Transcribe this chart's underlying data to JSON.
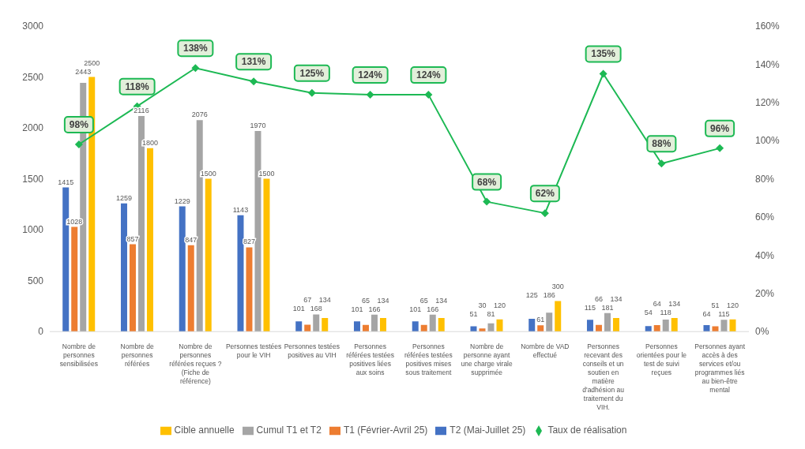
{
  "chart_data": {
    "type": "bar",
    "categories": [
      "Nombre de personnes sensibilisées",
      "Nombre de personnes référées",
      "Nombre de personnes référées reçues ? (Fiche de référence)",
      "Personnes testées pour le VIH",
      "Personnes testées positives au VIH",
      "Personnes référées testées positives liées aux soins",
      "Personnes référées testées positives mises sous traitement",
      "Nombre de personne ayant une charge virale supprimée",
      "Nombre de VAD effectué",
      "Personnes recevant des conseils et un soutien en matière d'adhésion au traitement du VIH.",
      "Personnes orientées pour le test de suivi reçues",
      "Personnes ayant accès à des services et/ou programmes liés au bien-être mental"
    ],
    "series": [
      {
        "name": "T2 (Mai-Juillet 25)",
        "color": "#4472c4",
        "values": [
          1415,
          1259,
          1229,
          1143,
          101,
          101,
          101,
          51,
          125,
          115,
          54,
          64
        ]
      },
      {
        "name": "T1 (Février-Avril 25)",
        "color": "#ed7d31",
        "values": [
          1028,
          857,
          847,
          827,
          67,
          65,
          65,
          30,
          61,
          66,
          64,
          51
        ]
      },
      {
        "name": "Cumul T1 et T2",
        "color": "#a5a5a5",
        "values": [
          2443,
          2116,
          2076,
          1970,
          168,
          166,
          166,
          81,
          186,
          181,
          118,
          115
        ]
      },
      {
        "name": "Cible annuelle",
        "color": "#ffc000",
        "values": [
          2500,
          1800,
          1500,
          1500,
          134,
          134,
          134,
          120,
          300,
          134,
          134,
          120
        ]
      },
      {
        "name": "Taux de réalisation",
        "type": "line",
        "axis": "y2",
        "color": "#1db954",
        "marker": "diamond",
        "values": [
          98,
          118,
          138,
          131,
          125,
          124,
          124,
          68,
          62,
          135,
          88,
          96
        ],
        "value_labels": [
          "98%",
          "118%",
          "138%",
          "131%",
          "125%",
          "124%",
          "124%",
          "68%",
          "62%",
          "135%",
          "88%",
          "96%"
        ]
      }
    ],
    "data_labels": true,
    "ylim": [
      0,
      3000
    ],
    "yticks": [
      0,
      500,
      1000,
      1500,
      2000,
      2500,
      3000
    ],
    "y2lim": [
      0,
      160
    ],
    "y2ticks": [
      {
        "value": 0,
        "label": "0%"
      },
      {
        "value": 20,
        "label": "20%"
      },
      {
        "value": 40,
        "label": "40%"
      },
      {
        "value": 60,
        "label": "60%"
      },
      {
        "value": 80,
        "label": "80%"
      },
      {
        "value": 100,
        "label": "100%"
      },
      {
        "value": 120,
        "label": "120%"
      },
      {
        "value": 140,
        "label": "140%"
      },
      {
        "value": 160,
        "label": "160%"
      }
    ],
    "grid": false,
    "legend": "bottom"
  }
}
